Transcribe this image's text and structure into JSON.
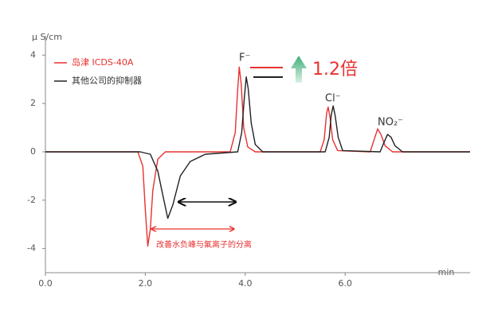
{
  "chart_data": {
    "type": "line",
    "y_label": "μ S/cm",
    "x_label": "min",
    "xlim": [
      0,
      8.5
    ],
    "ylim": [
      -5,
      4.8
    ],
    "xticks": [
      {
        "value": 0,
        "label": "0.0"
      },
      {
        "value": 2,
        "label": "2.0"
      },
      {
        "value": 4,
        "label": "4.0"
      },
      {
        "value": 6,
        "label": "6.0"
      }
    ],
    "yticks": [
      4,
      2,
      0,
      -2,
      -4
    ],
    "grid": false,
    "legend": "top-left",
    "series": [
      {
        "name": "岛津 ICDS-40A",
        "color": "#e8312f",
        "x": [
          0,
          1.85,
          1.95,
          2.0,
          2.05,
          2.1,
          2.15,
          2.25,
          2.4,
          3.7,
          3.8,
          3.85,
          3.88,
          3.92,
          3.97,
          4.05,
          4.2,
          5.5,
          5.58,
          5.63,
          5.66,
          5.7,
          5.75,
          5.85,
          6.5,
          6.58,
          6.65,
          6.72,
          6.8,
          6.95,
          8.5
        ],
        "values": [
          0,
          0,
          -0.6,
          -2.4,
          -3.9,
          -3.2,
          -1.6,
          -0.3,
          0,
          0,
          0.8,
          2.6,
          3.5,
          2.8,
          1.0,
          0.2,
          0,
          0,
          0.5,
          1.6,
          1.85,
          1.4,
          0.5,
          0.05,
          0,
          0.5,
          0.95,
          0.7,
          0.25,
          0,
          0
        ]
      },
      {
        "name": "其他公司的抑制器",
        "color": "#222222",
        "x": [
          0,
          1.9,
          2.1,
          2.25,
          2.35,
          2.45,
          2.55,
          2.7,
          2.9,
          3.2,
          3.85,
          3.93,
          3.98,
          4.02,
          4.06,
          4.12,
          4.2,
          4.35,
          5.6,
          5.68,
          5.72,
          5.76,
          5.8,
          5.86,
          5.95,
          6.7,
          6.78,
          6.85,
          6.92,
          7.0,
          7.15,
          8.5
        ],
        "values": [
          0,
          0,
          -0.1,
          -0.8,
          -1.8,
          -2.75,
          -2.2,
          -1.0,
          -0.4,
          -0.1,
          0,
          0.8,
          2.2,
          3.1,
          2.6,
          1.2,
          0.3,
          0,
          0,
          0.6,
          1.5,
          1.9,
          1.5,
          0.6,
          0.05,
          0,
          0.4,
          0.72,
          0.6,
          0.25,
          0,
          0
        ]
      }
    ],
    "annotations": [
      {
        "text": "F⁻"
      },
      {
        "text": "Cl⁻"
      },
      {
        "text": "NO₂⁻"
      },
      {
        "text": "1.2倍"
      },
      {
        "text": "改善水负峰与氟离子的分离"
      }
    ]
  }
}
